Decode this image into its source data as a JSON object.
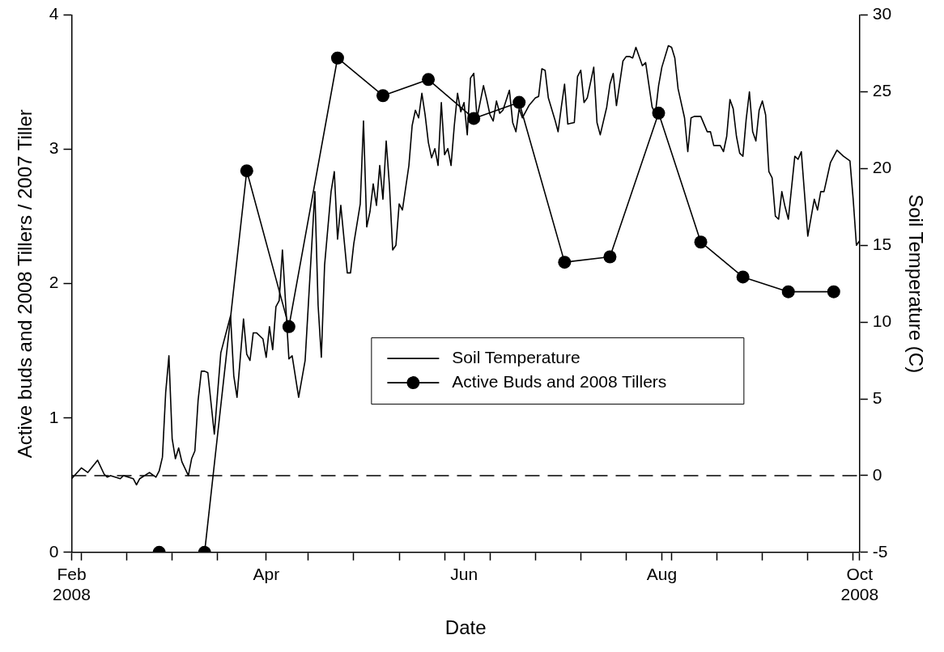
{
  "chart_data": {
    "type": "line",
    "xlabel": "Date",
    "ylabel": "Active buds and 2008 Tillers / 2007 Tiller",
    "y2label": "Soil Temperature (C)",
    "xlim": [
      "2008-02-01",
      "2008-10-01"
    ],
    "xticks": [
      {
        "value": "2008-02-01",
        "label": "Feb\n2008"
      },
      {
        "value": "2008-02-04",
        "label": null
      },
      {
        "value": "2008-02-18",
        "label": null
      },
      {
        "value": "2008-03-03",
        "label": null
      },
      {
        "value": "2008-03-17",
        "label": null
      },
      {
        "value": "2008-04-01",
        "label": "Apr"
      },
      {
        "value": "2008-04-14",
        "label": null
      },
      {
        "value": "2008-04-28",
        "label": null
      },
      {
        "value": "2008-05-12",
        "label": null
      },
      {
        "value": "2008-05-26",
        "label": null
      },
      {
        "value": "2008-06-01",
        "label": "Jun"
      },
      {
        "value": "2008-06-09",
        "label": null
      },
      {
        "value": "2008-06-23",
        "label": null
      },
      {
        "value": "2008-07-07",
        "label": null
      },
      {
        "value": "2008-07-21",
        "label": null
      },
      {
        "value": "2008-08-01",
        "label": "Aug"
      },
      {
        "value": "2008-08-04",
        "label": null
      },
      {
        "value": "2008-08-18",
        "label": null
      },
      {
        "value": "2008-09-01",
        "label": null
      },
      {
        "value": "2008-09-15",
        "label": null
      },
      {
        "value": "2008-09-29",
        "label": null
      },
      {
        "value": "2008-10-01",
        "label": "Oct\n2008"
      }
    ],
    "ylim": [
      0,
      4
    ],
    "yticks": [
      0,
      1,
      2,
      3,
      4
    ],
    "y2lim": [
      -5,
      30
    ],
    "y2ticks": [
      -5,
      0,
      5,
      10,
      15,
      20,
      25,
      30
    ],
    "grid": false,
    "legend": "center",
    "ref_lines": [
      {
        "axis": "y2",
        "value": 0,
        "line_style": "dashed",
        "color": "#000000"
      }
    ],
    "series": [
      {
        "name": "Soil Temperature",
        "color": "#000000",
        "axis": "y2",
        "marker": "none",
        "line_style": "solid",
        "x": [
          "2008-02-01",
          "2008-02-04",
          "2008-02-06",
          "2008-02-09",
          "2008-02-11",
          "2008-02-12",
          "2008-02-13",
          "2008-02-16",
          "2008-02-17",
          "2008-02-20",
          "2008-02-21",
          "2008-02-22",
          "2008-02-25",
          "2008-02-27",
          "2008-02-28",
          "2008-02-29",
          "2008-03-01",
          "2008-03-02",
          "2008-03-03",
          "2008-03-04",
          "2008-03-05",
          "2008-03-06",
          "2008-03-08",
          "2008-03-09",
          "2008-03-10",
          "2008-03-11",
          "2008-03-12",
          "2008-03-13",
          "2008-03-14",
          "2008-03-16",
          "2008-03-18",
          "2008-03-21",
          "2008-03-22",
          "2008-03-23",
          "2008-03-25",
          "2008-03-26",
          "2008-03-27",
          "2008-03-28",
          "2008-03-29",
          "2008-03-31",
          "2008-04-01",
          "2008-04-02",
          "2008-04-03",
          "2008-04-04",
          "2008-04-05",
          "2008-04-06",
          "2008-04-08",
          "2008-04-09",
          "2008-04-11",
          "2008-04-13",
          "2008-04-16",
          "2008-04-17",
          "2008-04-18",
          "2008-04-19",
          "2008-04-21",
          "2008-04-22",
          "2008-04-23",
          "2008-04-24",
          "2008-04-26",
          "2008-04-27",
          "2008-04-28",
          "2008-04-30",
          "2008-05-01",
          "2008-05-02",
          "2008-05-03",
          "2008-05-04",
          "2008-05-05",
          "2008-05-06",
          "2008-05-07",
          "2008-05-08",
          "2008-05-09",
          "2008-05-10",
          "2008-05-11",
          "2008-05-12",
          "2008-05-13",
          "2008-05-15",
          "2008-05-16",
          "2008-05-17",
          "2008-05-18",
          "2008-05-19",
          "2008-05-20",
          "2008-05-21",
          "2008-05-22",
          "2008-05-23",
          "2008-05-24",
          "2008-05-25",
          "2008-05-26",
          "2008-05-27",
          "2008-05-28",
          "2008-05-29",
          "2008-05-30",
          "2008-05-31",
          "2008-06-01",
          "2008-06-02",
          "2008-06-03",
          "2008-06-04",
          "2008-06-05",
          "2008-06-07",
          "2008-06-08",
          "2008-06-09",
          "2008-06-10",
          "2008-06-11",
          "2008-06-12",
          "2008-06-13",
          "2008-06-15",
          "2008-06-16",
          "2008-06-17",
          "2008-06-18",
          "2008-06-19",
          "2008-06-21",
          "2008-06-23",
          "2008-06-24",
          "2008-06-25",
          "2008-06-26",
          "2008-06-27",
          "2008-06-29",
          "2008-06-30",
          "2008-07-01",
          "2008-07-02",
          "2008-07-03",
          "2008-07-05",
          "2008-07-06",
          "2008-07-07",
          "2008-07-08",
          "2008-07-09",
          "2008-07-11",
          "2008-07-12",
          "2008-07-13",
          "2008-07-15",
          "2008-07-16",
          "2008-07-17",
          "2008-07-18",
          "2008-07-20",
          "2008-07-21",
          "2008-07-22",
          "2008-07-23",
          "2008-07-24",
          "2008-07-26",
          "2008-07-27",
          "2008-07-29",
          "2008-07-30",
          "2008-07-31",
          "2008-08-01",
          "2008-08-03",
          "2008-08-04",
          "2008-08-05",
          "2008-08-06",
          "2008-08-08",
          "2008-08-09",
          "2008-08-10",
          "2008-08-11",
          "2008-08-13",
          "2008-08-14",
          "2008-08-15",
          "2008-08-16",
          "2008-08-17",
          "2008-08-19",
          "2008-08-20",
          "2008-08-21",
          "2008-08-22",
          "2008-08-23",
          "2008-08-24",
          "2008-08-25",
          "2008-08-26",
          "2008-08-27",
          "2008-08-28",
          "2008-08-29",
          "2008-08-30",
          "2008-08-31",
          "2008-09-01",
          "2008-09-02",
          "2008-09-03",
          "2008-09-04",
          "2008-09-05",
          "2008-09-06",
          "2008-09-07",
          "2008-09-08",
          "2008-09-09",
          "2008-09-11",
          "2008-09-12",
          "2008-09-13",
          "2008-09-15",
          "2008-09-17",
          "2008-09-18",
          "2008-09-19",
          "2008-09-20",
          "2008-09-22",
          "2008-09-24",
          "2008-09-26",
          "2008-09-28",
          "2008-09-29",
          "2008-09-30",
          "2008-10-01"
        ],
        "values": [
          -0.2,
          0.5,
          0.2,
          1.0,
          0.1,
          -0.1,
          0,
          -0.2,
          0,
          -0.2,
          -0.6,
          -0.2,
          0.2,
          -0.1,
          0.3,
          1.2,
          5.4,
          7.8,
          2.4,
          1.1,
          1.8,
          0.9,
          0,
          1.1,
          1.6,
          4.9,
          6.8,
          6.8,
          6.7,
          2.7,
          8.0,
          10.4,
          6.5,
          5.1,
          10.2,
          7.9,
          7.5,
          9.3,
          9.3,
          8.9,
          7.7,
          9.7,
          8.2,
          11.0,
          11.4,
          14.7,
          7.6,
          7.8,
          5.1,
          7.5,
          18.5,
          11.1,
          7.7,
          13.7,
          18.5,
          19.8,
          15.4,
          17.6,
          13.2,
          13.2,
          15.1,
          17.7,
          23.1,
          16.2,
          17.2,
          19.0,
          17.6,
          20.2,
          18.0,
          21.8,
          18.9,
          14.7,
          15.0,
          17.7,
          17.3,
          20.2,
          22.8,
          23.8,
          23.3,
          24.9,
          23.5,
          21.7,
          20.7,
          21.3,
          20.2,
          24.3,
          20.9,
          21.3,
          20.2,
          22.8,
          24.9,
          23.7,
          24.3,
          22.2,
          25.9,
          26.2,
          23.3,
          25.4,
          24.5,
          23.5,
          23.1,
          24.4,
          23.6,
          23.8,
          25.1,
          23.0,
          22.4,
          23.9,
          23.3,
          24.1,
          24.6,
          24.7,
          26.5,
          26.4,
          24.6,
          23.2,
          22.4,
          24.0,
          25.5,
          22.9,
          23.0,
          26.0,
          26.4,
          24.3,
          24.6,
          26.6,
          23.0,
          22.2,
          24.0,
          25.5,
          26.2,
          24.1,
          27.0,
          27.3,
          27.3,
          27.2,
          27.9,
          26.7,
          26.9,
          24.0,
          23.6,
          25.4,
          26.6,
          28.0,
          27.9,
          27.2,
          25.2,
          23.3,
          21.1,
          23.3,
          23.4,
          23.4,
          22.9,
          22.4,
          22.4,
          21.5,
          21.5,
          21.1,
          22.1,
          24.5,
          23.9,
          22.1,
          21.0,
          20.8,
          23.2,
          25.0,
          22.4,
          21.8,
          23.8,
          24.4,
          23.5,
          19.8,
          19.4,
          16.9,
          16.7,
          18.5,
          17.5,
          16.7,
          20.8,
          20.6,
          21.1,
          15.6,
          18.0,
          17.3,
          18.5,
          18.5,
          20.4,
          21.2,
          20.8,
          20.5,
          18.0,
          15.0,
          15.3
        ]
      },
      {
        "name": "Active Buds and 2008 Tillers",
        "color": "#000000",
        "marker": "circle",
        "line_style": "solid",
        "x": [
          "2008-02-28",
          "2008-03-13",
          "2008-03-26",
          "2008-04-08",
          "2008-04-23",
          "2008-05-07",
          "2008-05-21",
          "2008-06-04",
          "2008-06-18",
          "2008-07-02",
          "2008-07-16",
          "2008-07-31",
          "2008-08-13",
          "2008-08-26",
          "2008-09-09",
          "2008-09-23"
        ],
        "values": [
          0,
          0,
          2.84,
          1.68,
          3.68,
          3.4,
          3.52,
          3.23,
          3.35,
          2.16,
          2.2,
          3.27,
          2.31,
          2.05,
          1.94,
          1.94
        ]
      }
    ]
  }
}
